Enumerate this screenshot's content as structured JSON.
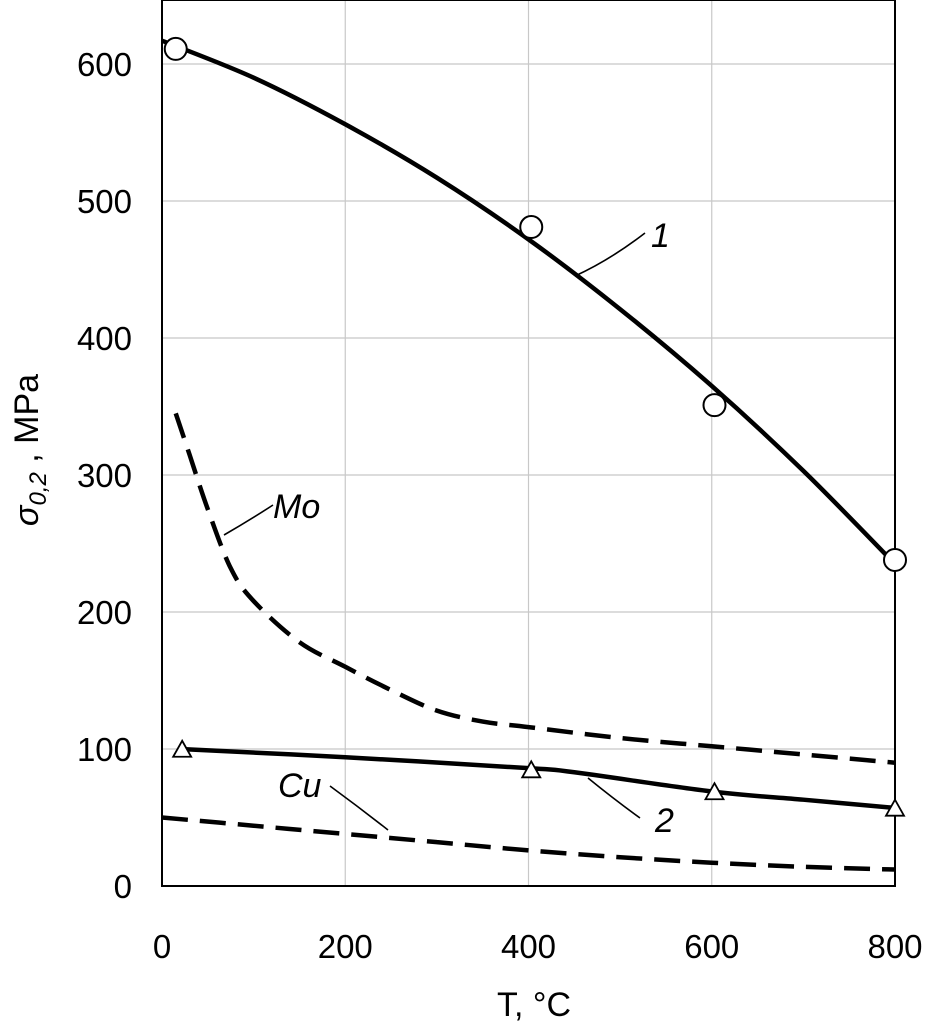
{
  "chart_data": {
    "type": "line",
    "xlabel": "T, °C",
    "ylabel": {
      "main": "σ",
      "sub": "0,2",
      "rest": " , MPa"
    },
    "xlim": [
      0,
      800
    ],
    "ylim": [
      0,
      650
    ],
    "xticks": [
      0,
      200,
      400,
      600,
      800
    ],
    "yticks": [
      0,
      100,
      200,
      300,
      400,
      500,
      600
    ],
    "xtick_labels": [
      "0",
      "200",
      "400",
      "600",
      "800"
    ],
    "ytick_labels": [
      "0",
      "100",
      "200",
      "300",
      "400",
      "500",
      "600"
    ],
    "grid": true,
    "series": [
      {
        "name": "1",
        "style": "solid",
        "color": "#000000",
        "curve": {
          "x": [
            0,
            100,
            200,
            300,
            400,
            500,
            600,
            700,
            800
          ],
          "y": [
            617,
            590,
            556,
            517,
            472,
            421,
            365,
            303,
            235
          ]
        },
        "markers": {
          "shape": "circle",
          "x": [
            15,
            403,
            603,
            800
          ],
          "y": [
            611,
            481,
            351,
            238
          ]
        }
      },
      {
        "name": "2",
        "style": "solid",
        "color": "#000000",
        "curve": {
          "x": [
            20,
            200,
            400,
            450,
            600,
            700,
            800
          ],
          "y": [
            100,
            94,
            86,
            83,
            69,
            63,
            57
          ]
        },
        "markers": {
          "shape": "triangle",
          "x": [
            22,
            403,
            603,
            800
          ],
          "y": [
            99,
            84,
            68,
            56
          ]
        }
      },
      {
        "name": "Mo",
        "style": "dashed",
        "color": "#000000",
        "curve": {
          "x": [
            15,
            30,
            50,
            75,
            100,
            150,
            200,
            250,
            300,
            350,
            400,
            500,
            600,
            700,
            800
          ],
          "y": [
            345,
            315,
            275,
            232,
            208,
            178,
            160,
            143,
            128,
            120,
            116,
            108,
            102,
            96,
            90
          ]
        }
      },
      {
        "name": "Cu",
        "style": "dashed",
        "color": "#000000",
        "curve": {
          "x": [
            0,
            100,
            200,
            300,
            400,
            500,
            600,
            700,
            800
          ],
          "y": [
            50,
            44,
            38,
            32,
            26,
            21,
            17,
            14,
            12
          ]
        }
      }
    ],
    "annotations": [
      {
        "text": "1",
        "series": "1"
      },
      {
        "text": "2",
        "series": "2"
      },
      {
        "text": "Mo",
        "series": "Mo"
      },
      {
        "text": "Cu",
        "series": "Cu"
      }
    ]
  }
}
